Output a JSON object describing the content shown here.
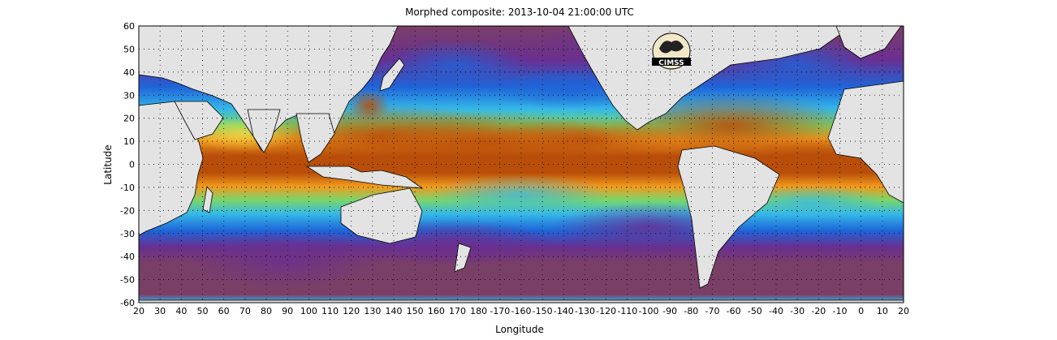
{
  "title": "Morphed composite: 2013-10-04 21:00:00 UTC",
  "xlabel": "Longitude",
  "ylabel": "Latitude",
  "logo_text": "CIMSS",
  "x_ticks": [
    "20",
    "30",
    "40",
    "50",
    "60",
    "70",
    "80",
    "90",
    "100",
    "110",
    "120",
    "130",
    "140",
    "150",
    "160",
    "170",
    "180",
    "-170",
    "-160",
    "-150",
    "-140",
    "-130",
    "-120",
    "-110",
    "-100",
    "-90",
    "-80",
    "-70",
    "-60",
    "-50",
    "-40",
    "-30",
    "-20",
    "-10",
    "0",
    "10",
    "20"
  ],
  "y_ticks": [
    "60",
    "50",
    "40",
    "30",
    "20",
    "10",
    "0",
    "-10",
    "-20",
    "-30",
    "-40",
    "-50",
    "-60"
  ],
  "map": {
    "lon_start": 20,
    "lon_span": 360,
    "lat_range": [
      -60,
      60
    ],
    "grid": true,
    "colors": {
      "dry": "#7a3f67",
      "purple": "#6a2f8f",
      "blue": "#1f64d8",
      "cyan": "#35b8e8",
      "green": "#79d66b",
      "yellow": "#f2e24b",
      "orange": "#f29a1e",
      "moist": "#b84e0a",
      "land": "#e3e3e3",
      "coast": "#000000"
    }
  }
}
